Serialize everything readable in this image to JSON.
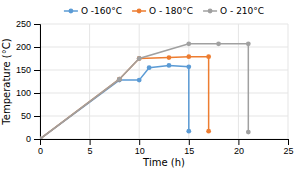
{
  "chart_data": {
    "type": "line",
    "xlabel": "Time  (h)",
    "ylabel": "Temperature (°C)",
    "series": [
      {
        "name": "O -160°C",
        "color": "#5B9BD5",
        "marker": "circle",
        "x": [
          0,
          8,
          10,
          11,
          13,
          15,
          15
        ],
        "values": [
          0,
          128,
          128,
          155,
          160,
          157,
          17
        ]
      },
      {
        "name": "O - 180°C",
        "color": "#ED7D31",
        "marker": "circle",
        "x": [
          0,
          8,
          10,
          13,
          15,
          17,
          17
        ],
        "values": [
          0,
          130,
          175,
          177,
          179,
          179,
          17
        ]
      },
      {
        "name": "O - 210°C",
        "color": "#A0A0A0",
        "marker": "circle",
        "x": [
          0,
          8,
          10,
          15,
          18,
          21,
          21
        ],
        "values": [
          0,
          130,
          175,
          207,
          207,
          207,
          15
        ]
      }
    ],
    "xlim": [
      0,
      25
    ],
    "ylim": [
      0,
      250
    ],
    "xticks": [
      0,
      5,
      10,
      15,
      20,
      25
    ],
    "yticks": [
      0,
      50,
      100,
      150,
      200,
      250
    ],
    "grid": true,
    "legend": "top"
  }
}
